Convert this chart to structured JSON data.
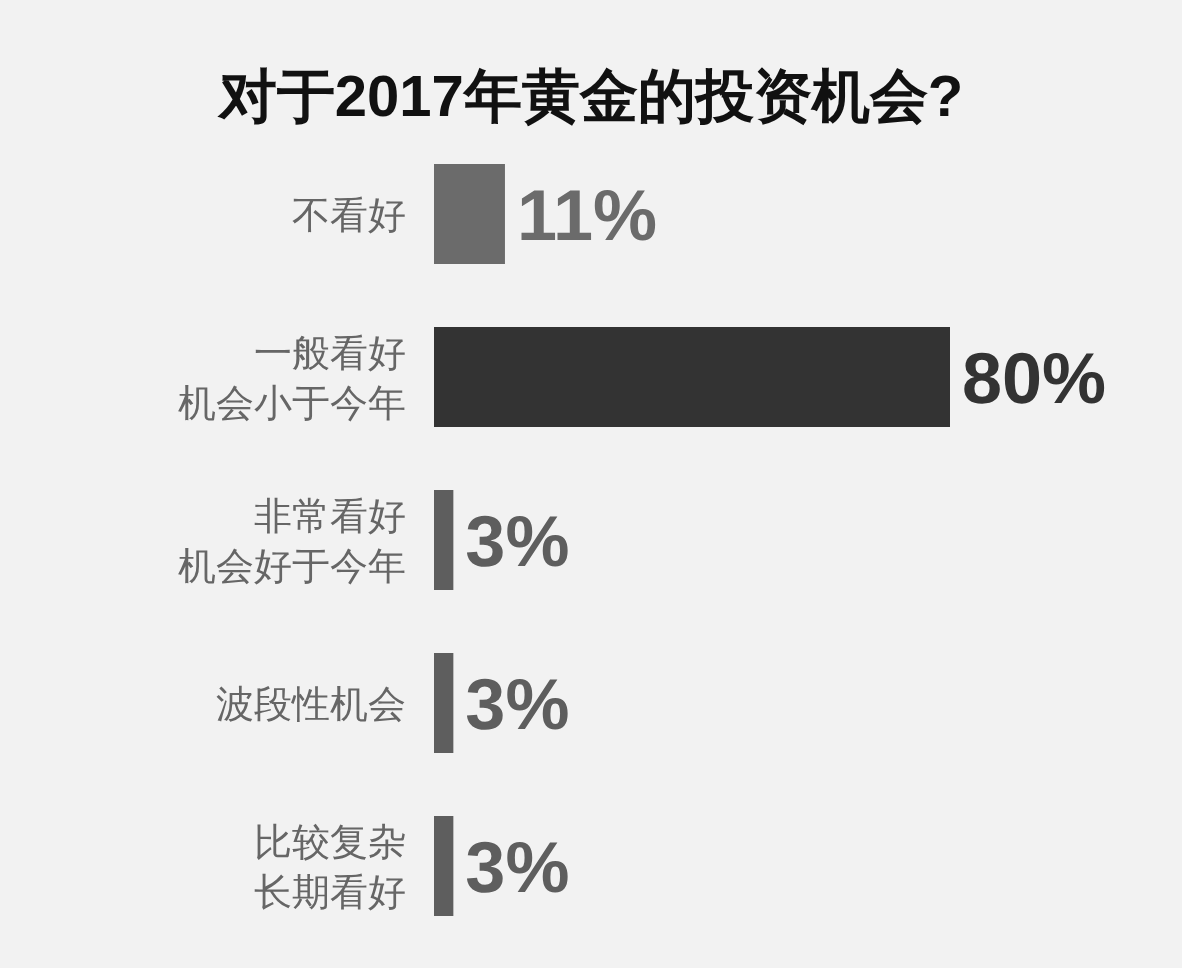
{
  "chart_data": {
    "type": "bar",
    "orientation": "horizontal",
    "title": "对于2017年黄金的投资机会?",
    "categories": [
      "不看好",
      "一般看好机会小于今年",
      "非常看好机会好于今年",
      "波段性机会",
      "比较复杂长期看好"
    ],
    "values": [
      11,
      80,
      3,
      3,
      3
    ],
    "colors": [
      "#6b6b6b",
      "#333333",
      "#5e5e5e",
      "#5e5e5e",
      "#5e5e5e"
    ],
    "value_labels": [
      "11%",
      "80%",
      "3%",
      "3%",
      "3%"
    ]
  }
}
